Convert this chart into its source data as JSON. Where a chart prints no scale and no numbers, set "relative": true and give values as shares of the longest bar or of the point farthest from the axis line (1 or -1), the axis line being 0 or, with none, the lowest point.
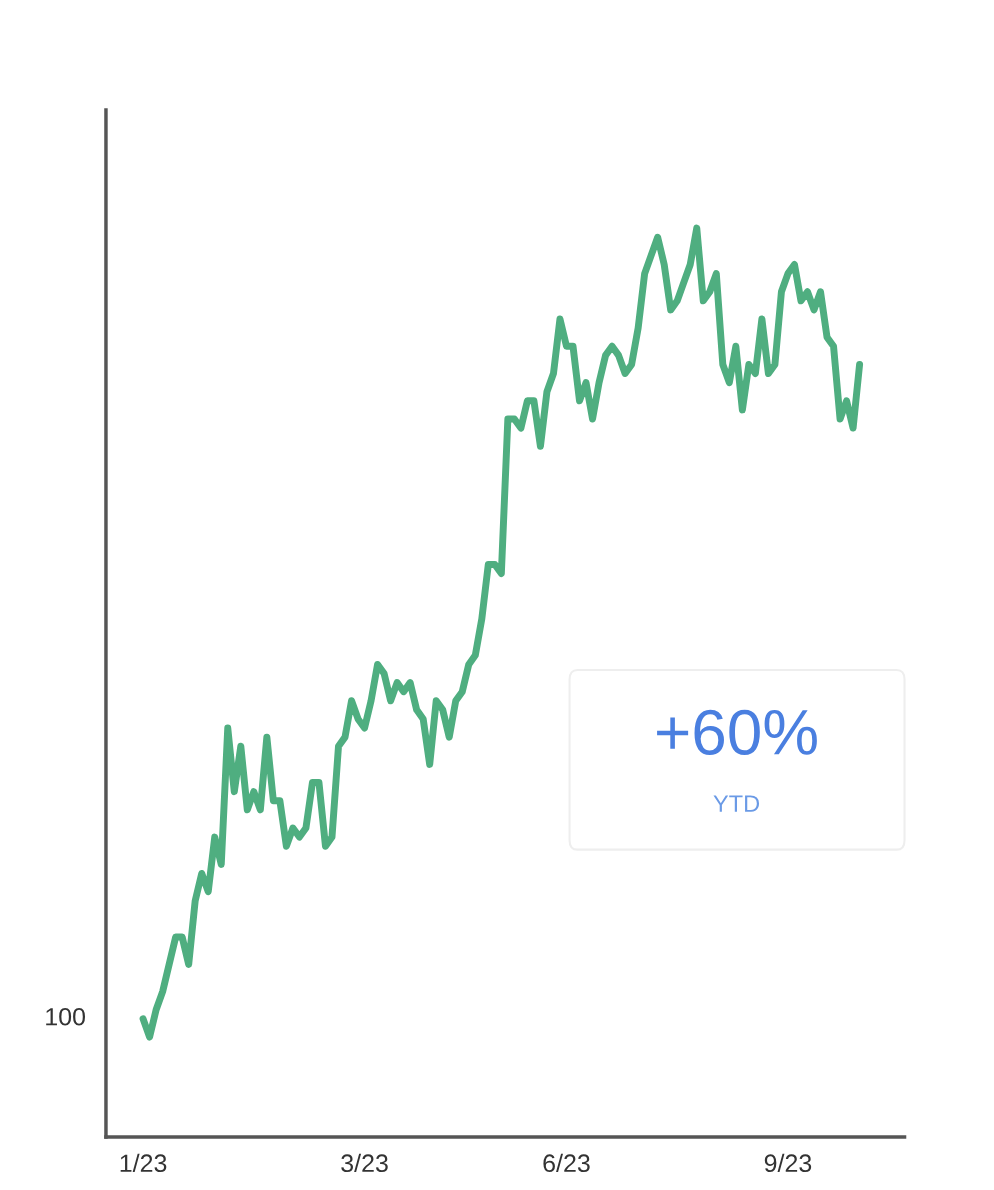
{
  "chart_data": {
    "type": "line",
    "relative": true,
    "categories": [
      "1/23",
      null,
      null,
      null,
      null,
      null,
      null,
      null,
      null,
      null,
      null,
      null,
      null,
      null,
      null,
      null,
      null,
      null,
      null,
      null,
      null,
      null,
      null,
      null,
      null,
      null,
      null,
      null,
      null,
      null,
      null,
      null,
      null,
      null,
      "3/23",
      null,
      null,
      null,
      null,
      null,
      null,
      null,
      null,
      null,
      null,
      null,
      null,
      null,
      null,
      null,
      null,
      null,
      null,
      null,
      null,
      null,
      null,
      null,
      null,
      null,
      null,
      null,
      null,
      null,
      null,
      "6/23",
      null,
      null,
      null,
      null,
      null,
      null,
      null,
      null,
      null,
      null,
      null,
      null,
      null,
      null,
      null,
      null,
      null,
      null,
      null,
      null,
      null,
      null,
      null,
      null,
      null,
      null,
      null,
      null,
      null,
      null,
      null,
      null,
      null,
      "9/23",
      null,
      null,
      null,
      null,
      null,
      null,
      null,
      null,
      null,
      null,
      null
    ],
    "series": [
      {
        "color": "#4fae80",
        "values": [
          0.13,
          0.11,
          0.14,
          0.16,
          0.19,
          0.22,
          0.22,
          0.19,
          0.26,
          0.29,
          0.27,
          0.33,
          0.3,
          0.45,
          0.38,
          0.43,
          0.36,
          0.38,
          0.36,
          0.44,
          0.37,
          0.37,
          0.32,
          0.34,
          0.33,
          0.34,
          0.39,
          0.39,
          0.32,
          0.33,
          0.43,
          0.44,
          0.48,
          0.46,
          0.45,
          0.48,
          0.52,
          0.51,
          0.48,
          0.5,
          0.49,
          0.5,
          0.47,
          0.46,
          0.41,
          0.48,
          0.47,
          0.44,
          0.48,
          0.49,
          0.52,
          0.53,
          0.57,
          0.63,
          0.63,
          0.62,
          0.79,
          0.79,
          0.78,
          0.81,
          0.81,
          0.76,
          0.82,
          0.84,
          0.9,
          0.87,
          0.87,
          0.81,
          0.83,
          0.79,
          0.83,
          0.86,
          0.87,
          0.86,
          0.84,
          0.85,
          0.89,
          0.95,
          0.97,
          0.99,
          0.96,
          0.91,
          0.92,
          0.94,
          0.96,
          1.0,
          0.92,
          0.93,
          0.95,
          0.85,
          0.83,
          0.87,
          0.8,
          0.85,
          0.84,
          0.9,
          0.84,
          0.85,
          0.93,
          0.95,
          0.96,
          0.92,
          0.93,
          0.91,
          0.93,
          0.88,
          0.87,
          0.79,
          0.81,
          0.78,
          0.85
        ]
      }
    ],
    "grid": false,
    "marker": "none",
    "line_style": "solid",
    "annotations": [
      "100",
      "+60%",
      "YTD"
    ]
  }
}
